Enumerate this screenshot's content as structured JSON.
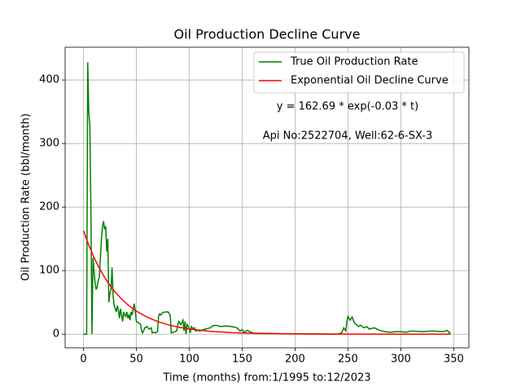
{
  "chart_data": {
    "type": "line",
    "title": "Oil Production Decline Curve",
    "x_label": "Time (months) from:1/1995 to:12/2023",
    "y_label": "Oil Production Rate (bbl/month)",
    "annotations": [
      "y = 162.69 * exp(-0.03 * t)",
      "Api No:2522704, Well:62-6-SX-3"
    ],
    "xlim": [
      -17.35,
      364.35
    ],
    "ylim": [
      -21.5,
      451.5
    ],
    "xticks": [
      0,
      50,
      100,
      150,
      200,
      250,
      300,
      350
    ],
    "yticks": [
      0,
      100,
      200,
      300,
      400
    ],
    "grid": true,
    "legend": "upper right",
    "series": [
      {
        "name": "True Oil Production Rate",
        "color": "#008000",
        "x": [
          0,
          2,
          3,
          4,
          5,
          6,
          7,
          8,
          9,
          10,
          11,
          12,
          13,
          14,
          15,
          16,
          17,
          18,
          19,
          20,
          21,
          22,
          23,
          24,
          25,
          26,
          27,
          28,
          29,
          30,
          31,
          32,
          33,
          34,
          35,
          36,
          37,
          38,
          39,
          40,
          41,
          42,
          43,
          44,
          45,
          46,
          47,
          48,
          49,
          50,
          52,
          54,
          55,
          56,
          58,
          60,
          62,
          64,
          65,
          66,
          68,
          70,
          71,
          72,
          73,
          75,
          78,
          80,
          82,
          83,
          85,
          88,
          90,
          92,
          94,
          95,
          96,
          97,
          98,
          100,
          101,
          102,
          104,
          105,
          106,
          108,
          110,
          115,
          120,
          122,
          125,
          130,
          135,
          140,
          145,
          148,
          150,
          152,
          155,
          157,
          160,
          165,
          170,
          200,
          240,
          244,
          246,
          248,
          249,
          250,
          252,
          254,
          256,
          258,
          260,
          262,
          265,
          268,
          270,
          275,
          280,
          285,
          290,
          295,
          300,
          305,
          310,
          320,
          330,
          340,
          344,
          346,
          347
        ],
        "values": [
          0,
          0,
          0,
          428,
          350,
          330,
          200,
          0,
          120,
          100,
          80,
          70,
          75,
          85,
          90,
          120,
          150,
          170,
          178,
          165,
          170,
          130,
          150,
          50,
          65,
          70,
          105,
          60,
          45,
          40,
          35,
          45,
          38,
          25,
          40,
          30,
          20,
          35,
          30,
          28,
          35,
          25,
          30,
          22,
          35,
          30,
          40,
          48,
          35,
          20,
          18,
          15,
          5,
          2,
          10,
          12,
          8,
          10,
          2,
          3,
          2,
          4,
          28,
          32,
          30,
          34,
          35,
          35,
          30,
          2,
          3,
          5,
          20,
          15,
          22,
          5,
          20,
          0,
          15,
          10,
          2,
          12,
          8,
          10,
          5,
          6,
          5,
          8,
          10,
          13,
          14,
          12,
          13,
          12,
          10,
          5,
          7,
          3,
          6,
          4,
          2,
          1,
          1,
          0.5,
          0,
          2,
          10,
          5,
          20,
          28,
          22,
          27,
          18,
          15,
          12,
          14,
          10,
          12,
          8,
          10,
          6,
          4,
          3,
          4,
          4,
          3,
          5,
          4,
          5,
          4,
          6,
          2,
          3
        ]
      },
      {
        "name": "Exponential Oil Decline Curve",
        "color": "#ff0000",
        "x": [
          0,
          5,
          10,
          15,
          20,
          25,
          30,
          35,
          40,
          45,
          50,
          60,
          70,
          80,
          90,
          100,
          120,
          140,
          160,
          200,
          250,
          300,
          347
        ],
        "values": [
          162.69,
          140.0,
          120.5,
          103.8,
          89.3,
          76.9,
          66.2,
          57.0,
          49.0,
          42.2,
          36.3,
          26.9,
          19.9,
          14.8,
          10.9,
          8.1,
          4.45,
          2.44,
          1.34,
          0.4,
          0.09,
          0.02,
          0.005
        ]
      }
    ]
  }
}
